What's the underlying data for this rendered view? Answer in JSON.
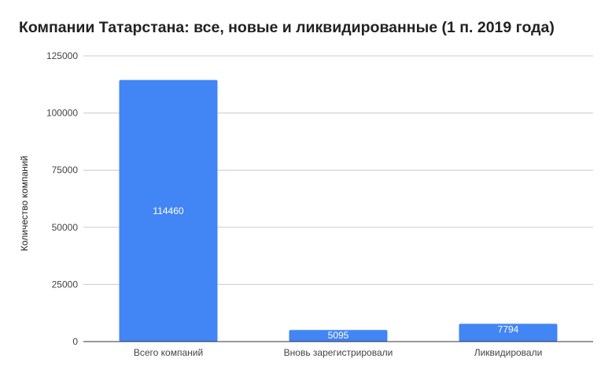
{
  "chart_data": {
    "type": "bar",
    "title": "Компании Татарстана: все, новые и ликвидированные (1 п. 2019 года)",
    "xlabel": "",
    "ylabel": "Количество компаний",
    "categories": [
      "Всего компаний",
      "Вновь зарегистрировали",
      "Ликвидировали"
    ],
    "values": [
      114460,
      5095,
      7794
    ],
    "data_labels": [
      "114460",
      "5095",
      "7794"
    ],
    "ylim": [
      0,
      125000
    ],
    "yticks": [
      0,
      25000,
      50000,
      75000,
      100000,
      125000
    ],
    "ytick_labels": [
      "0",
      "25000",
      "50000",
      "75000",
      "100000",
      "125000"
    ],
    "grid": true,
    "legend": "none",
    "bar_color": "#4285f4",
    "grid_color": "#cccccc",
    "baseline_color": "#333333"
  }
}
